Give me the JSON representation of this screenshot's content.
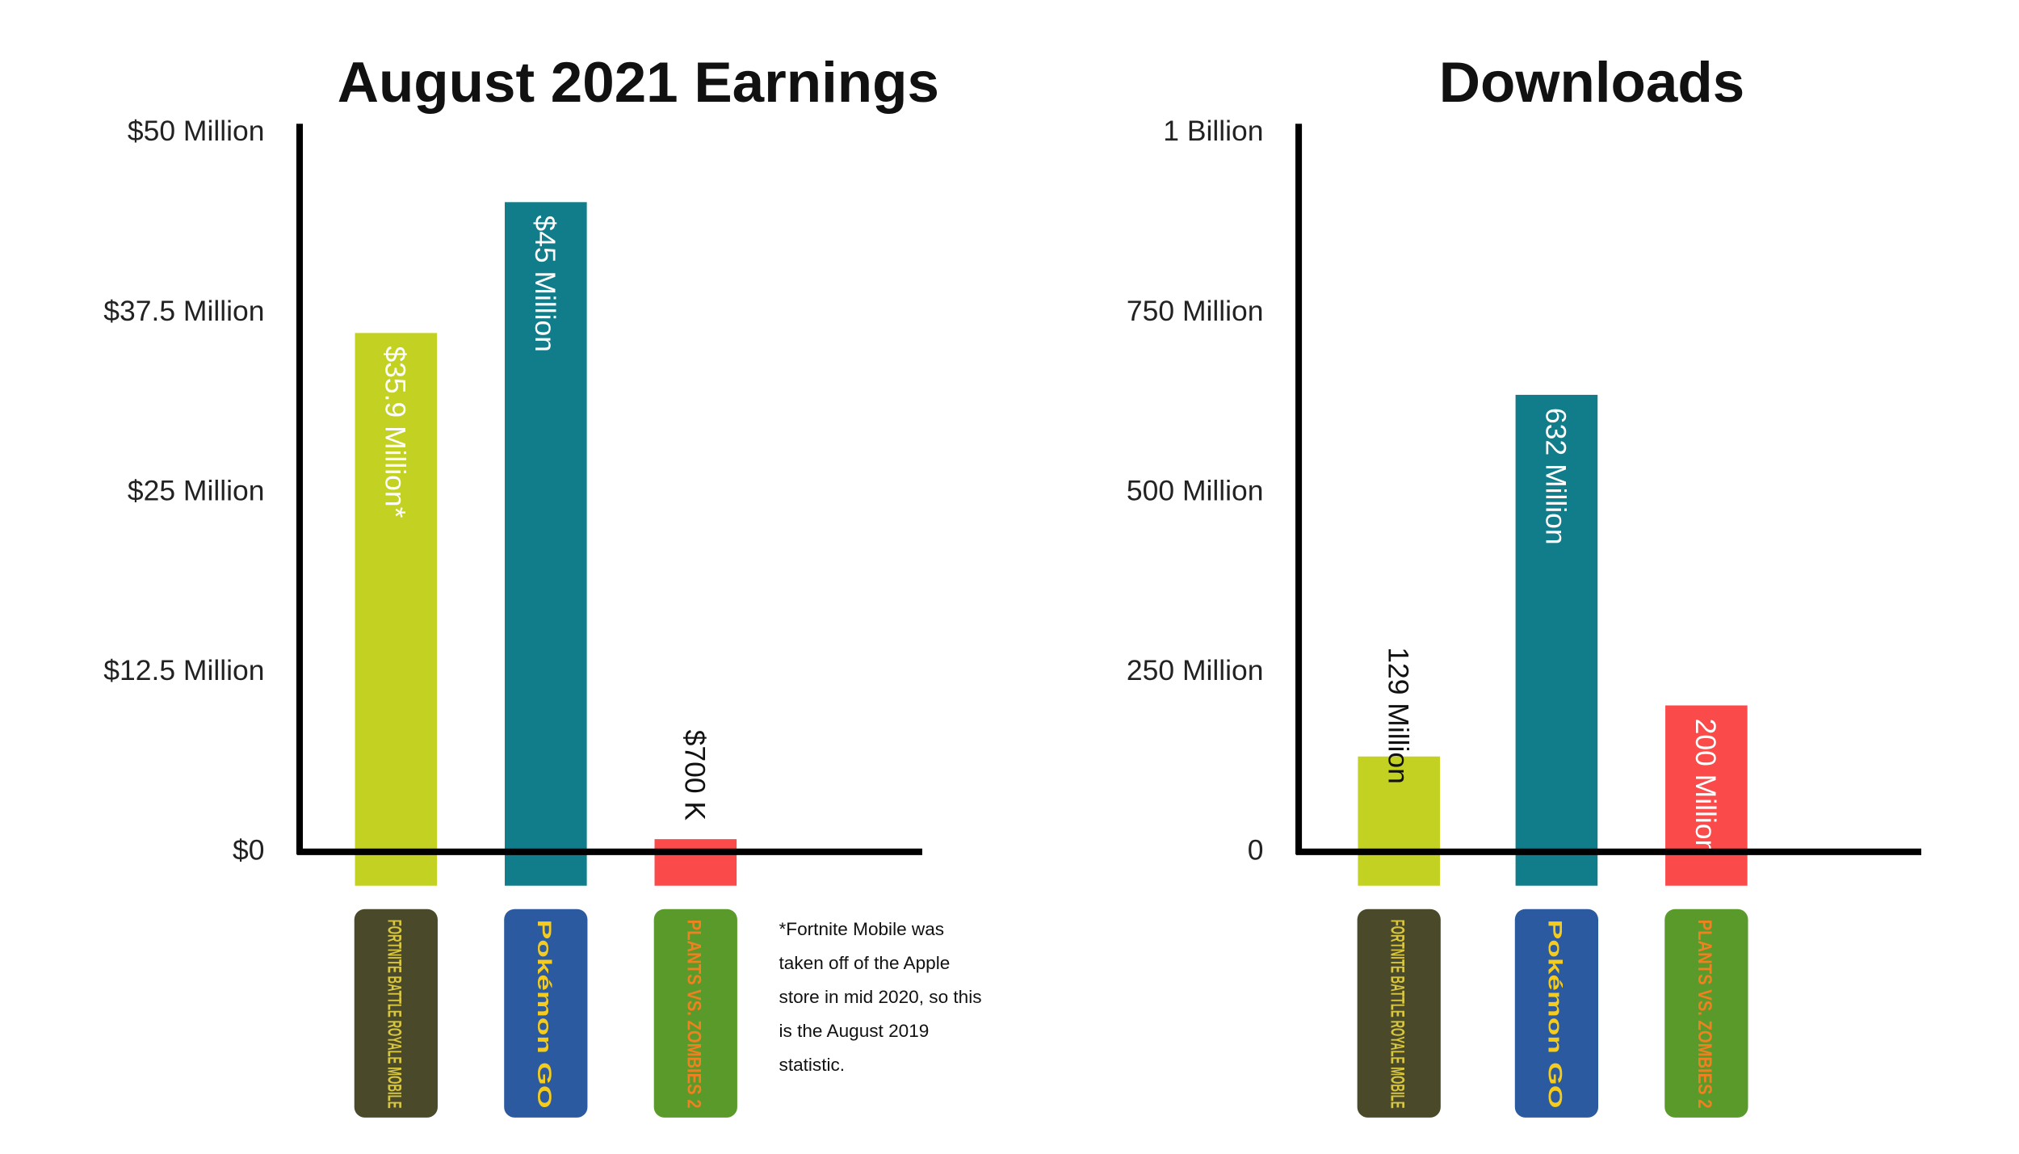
{
  "chart_data": [
    {
      "type": "bar",
      "title": "August 2021 Earnings",
      "categories": [
        "FORTNITE BATTLE ROYALE MOBILE",
        "Pokémon GO",
        "PLANTS VS. ZOMBIES 2"
      ],
      "values": [
        35.9,
        45,
        0.7
      ],
      "value_labels": [
        "$35.9 Million*",
        "$45 Million",
        "$700 K"
      ],
      "colors": [
        "#c2d122",
        "#117d8a",
        "#fa4a4a"
      ],
      "ylim": [
        0,
        50
      ],
      "yticks": [
        {
          "value": 0,
          "label": "$0"
        },
        {
          "value": 12.5,
          "label": "$12.5 Million"
        },
        {
          "value": 25,
          "label": "$25 Million"
        },
        {
          "value": 37.5,
          "label": "$37.5 Million"
        },
        {
          "value": 50,
          "label": "$50 Million"
        }
      ],
      "note": "*Fortnite Mobile was taken off of the Apple store in mid 2020, so this is the August 2019 statistic."
    },
    {
      "type": "bar",
      "title": "Downloads",
      "categories": [
        "FORTNITE BATTLE ROYALE MOBILE",
        "Pokémon GO",
        "PLANTS VS. ZOMBIES 2"
      ],
      "values": [
        129,
        632,
        200
      ],
      "value_labels": [
        "129 Million",
        "632 Million",
        "200 Million"
      ],
      "colors": [
        "#c2d122",
        "#117d8a",
        "#fa4a4a"
      ],
      "ylim": [
        0,
        1000
      ],
      "yticks": [
        0,
        {
          "value": 250,
          "label": "250 Million"
        },
        {
          "value": 500,
          "label": "500 Million"
        },
        {
          "value": 750,
          "label": "750 Million"
        },
        {
          "value": 1000,
          "label": "1 Billion"
        }
      ]
    }
  ]
}
